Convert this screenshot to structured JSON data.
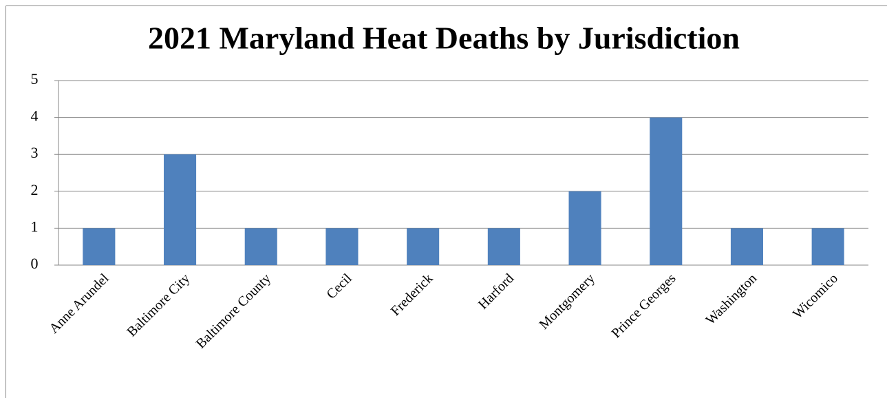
{
  "chart_data": {
    "type": "bar",
    "title": "2021 Maryland Heat Deaths by Jurisdiction",
    "categories": [
      "Anne Arundel",
      "Baltimore City",
      "Baltimore County",
      "Cecil",
      "Frederick",
      "Harford",
      "Montgomery",
      "Prince Georges",
      "Washington",
      "Wicomico"
    ],
    "values": [
      1,
      3,
      1,
      1,
      1,
      1,
      2,
      4,
      1,
      1
    ],
    "color": "#4f81bd",
    "ylim": [
      0,
      5
    ],
    "yticks": [
      0,
      1,
      2,
      3,
      4,
      5
    ],
    "grid": true
  }
}
